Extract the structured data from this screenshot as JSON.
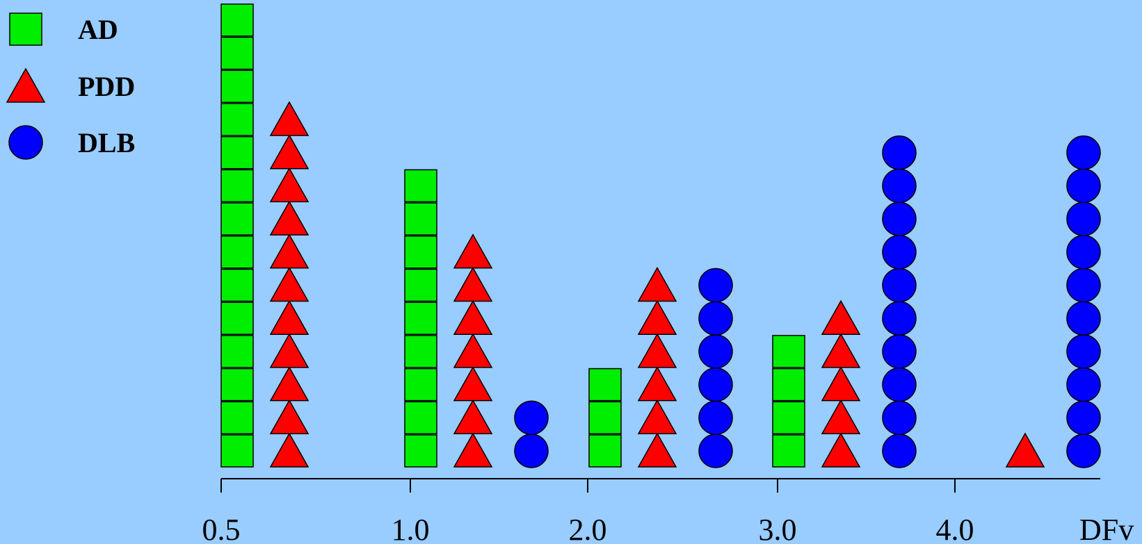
{
  "chart_data": {
    "type": "scatter",
    "subtype": "stacked-symbol-histogram",
    "title": "",
    "xlabel": "DFv",
    "ylabel": "",
    "grid": false,
    "legend_position": "top-left",
    "x_tick_labels": [
      "0.5",
      "1.0",
      "2.0",
      "3.0",
      "4.0"
    ],
    "bins": [
      {
        "range": [
          "0.5",
          "1.0"
        ],
        "counts": {
          "AD": 14,
          "PDD": 11,
          "DLB": 0
        }
      },
      {
        "range": [
          "1.0",
          "2.0"
        ],
        "counts": {
          "AD": 9,
          "PDD": 7,
          "DLB": 2
        }
      },
      {
        "range": [
          "2.0",
          "3.0"
        ],
        "counts": {
          "AD": 3,
          "PDD": 6,
          "DLB": 6
        }
      },
      {
        "range": [
          "3.0",
          "4.0"
        ],
        "counts": {
          "AD": 4,
          "PDD": 5,
          "DLB": 10
        }
      },
      {
        "range": [
          "4.0",
          "DFv"
        ],
        "counts": {
          "AD": 0,
          "PDD": 1,
          "DLB": 10
        }
      }
    ],
    "series": [
      {
        "name": "AD",
        "marker": "square",
        "color": "#00ee00"
      },
      {
        "name": "PDD",
        "marker": "triangle",
        "color": "#ff0000"
      },
      {
        "name": "DLB",
        "marker": "circle",
        "color": "#0000ff"
      }
    ]
  }
}
